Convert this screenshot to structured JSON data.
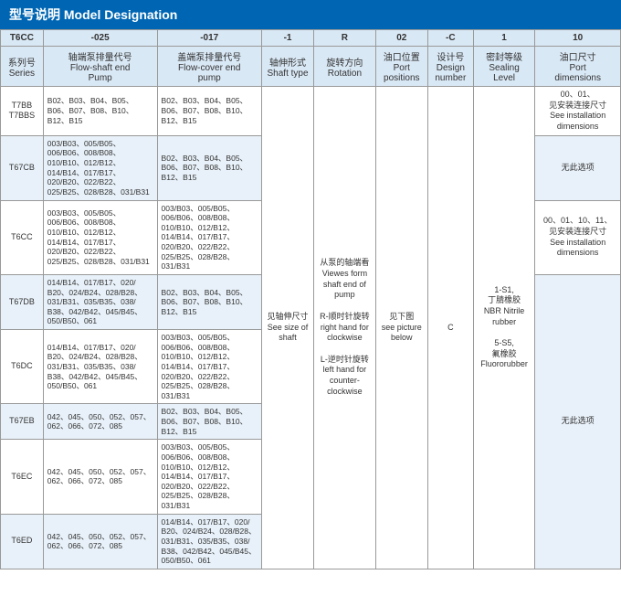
{
  "title": "型号说明 Model Designation",
  "headerRow1": {
    "c0": "T6CC",
    "c1": "-025",
    "c2": "-017",
    "c3": "-1",
    "c4": "R",
    "c5": "02",
    "c6": "-C",
    "c7": "1",
    "c8": "10"
  },
  "headerRow2": {
    "c0": "系列号\nSeries",
    "c1": "轴端泵排量代号\nFlow-shaft end\nPump",
    "c2": "盖端泵排量代号\nFlow-cover end\npump",
    "c3": "轴伸形式\nShaft type",
    "c4": "旋转方向\nRotation",
    "c5": "油口位置\nPort\npositions",
    "c6": "设计号\nDesign\nnumber",
    "c7": "密封等级\nSealing\nLevel",
    "c8": "油口尺寸\nPort\ndimensions"
  },
  "rows": [
    {
      "series": "T7BB\nT7BBS",
      "col1": "B02、B03、B04、B05、B06、B07、B08、B10、B12、B15",
      "col2": "B02、B03、B04、B05、B06、B07、B08、B10、B12、B15"
    },
    {
      "series": "T67CB",
      "col1": "003/B03、005/B05、006/B06、008/B08、010/B10、012/B12、014/B14、017/B17、020/B20、022/B22、025/B25、028/B28、031/B31",
      "col2": "B02、B03、B04、B05、B06、B07、B08、B10、B12、B15"
    },
    {
      "series": "T6CC",
      "col1": "003/B03、005/B05、006/B06、008/B08、010/B10、012/B12、014/B14、017/B17、020/B20、022/B22、025/B25、028/B28、031/B31",
      "col2": "003/B03、005/B05、006/B06、008/B08、010/B10、012/B12、014/B14、017/B17、020/B20、022/B22、025/B25、028/B28、031/B31"
    },
    {
      "series": "T67DB",
      "col1": "014/B14、017/B17、020/ B20、024/B24、028/B28、031/B31、035/B35、038/ B38、042/B42、045/B45、050/B50、061",
      "col2": "B02、B03、B04、B05、B06、B07、B08、B10、B12、B15"
    },
    {
      "series": "T6DC",
      "col1": "014/B14、017/B17、020/ B20、024/B24、028/B28、031/B31、035/B35、038/ B38、042/B42、045/B45、050/B50、061",
      "col2": "003/B03、005/B05、006/B06、008/B08、010/B10、012/B12、014/B14、017/B17、020/B20、022/B22、025/B25、028/B28、031/B31"
    },
    {
      "series": "T67EB",
      "col1": "042、045、050、052、057、062、066、072、085",
      "col2": "B02、B03、B04、B05、B06、B07、B08、B10、B12、B15"
    },
    {
      "series": "T6EC",
      "col1": "042、045、050、052、057、062、066、072、085",
      "col2": "003/B03、005/B05、006/B06、008/B08、010/B10、012/B12、014/B14、017/B17、020/B20、022/B22、025/B25、028/B28、031/B31"
    },
    {
      "series": "T6ED",
      "col1": "042、045、050、052、057、062、066、072、085",
      "col2": "014/B14、017/B17、020/ B20、024/B24、028/B28、031/B31、035/B35、038/ B38、042/B42、045/B45、050/B50、061"
    }
  ],
  "shaftType": "见轴伸尺寸\nSee size of\nshaft",
  "rotation": "从泵的轴端看\nViewes form\nshaft end of\npump\n\nR-顺时针旋转\nright hand for\nclockwise\n\nL-逆时针旋转\nleft hand for\ncounter-\nclockwise",
  "portPos": "见下图\nsee picture\nbelow",
  "designNum": "C",
  "sealing": "1-S1,\n丁腈橡胶\nNBR Nitrile\nrubber\n\n5-S5,\n氟橡胶\nFluororubber",
  "portDim": {
    "r0": "00、01、\n见安装连接尺寸\nSee installation\ndimensions",
    "r1": "无此选项",
    "r2": "00、01、10、11、\n见安装连接尺寸\nSee installation\ndimensions",
    "r3": "无此选项"
  }
}
